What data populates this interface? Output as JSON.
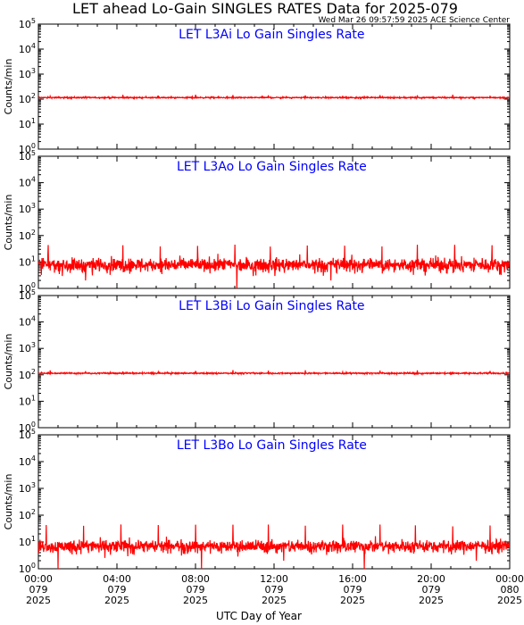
{
  "figure": {
    "title": "LET ahead Lo-Gain SINGLES RATES Data for 2025-079",
    "timestamp": "Wed Mar 26 09:57:59 2025 ACE Science Center",
    "xlabel": "UTC Day of Year"
  },
  "colors": {
    "trace": "#ff0000",
    "panel_title": "#0000ff",
    "axes": "#000000",
    "background": "#ffffff"
  },
  "chart_data": [
    {
      "type": "line",
      "title": "LET L3Ai Lo Gain Singles Rate",
      "ylabel": "Counts/min",
      "yscale": "log",
      "ylim": [
        1,
        100000
      ],
      "y_ticks": [
        "10^0",
        "10^1",
        "10^2",
        "10^3",
        "10^4",
        "10^5"
      ],
      "xlim": [
        "2025-079 00:00",
        "2025-080 00:00"
      ],
      "x_ticks": [
        "00:00 079 2025",
        "04:00 079 2025",
        "08:00 079 2025",
        "12:00 079 2025",
        "16:00 079 2025",
        "20:00 079 2025",
        "00:00 080 2025"
      ],
      "series": [
        {
          "baseline": 115,
          "noise_low": 105,
          "noise_high": 125,
          "spike_peak": 150,
          "spike_times_hours": [
            0.6,
            2.4,
            4.3,
            6.1,
            8.0,
            9.9,
            11.7,
            13.6,
            15.5,
            17.4,
            19.3,
            21.1,
            23.0
          ]
        }
      ]
    },
    {
      "type": "line",
      "title": "LET L3Ao Lo Gain Singles Rate",
      "ylabel": "Counts/min",
      "yscale": "log",
      "ylim": [
        1,
        100000
      ],
      "y_ticks": [
        "10^0",
        "10^1",
        "10^2",
        "10^3",
        "10^4",
        "10^5"
      ],
      "xlim": [
        "2025-079 00:00",
        "2025-080 00:00"
      ],
      "x_ticks": [
        "00:00 079 2025",
        "04:00 079 2025",
        "08:00 079 2025",
        "12:00 079 2025",
        "16:00 079 2025",
        "20:00 079 2025",
        "00:00 080 2025"
      ],
      "series": [
        {
          "baseline": 8,
          "noise_low": 3,
          "noise_high": 18,
          "spike_peak": 45,
          "spike_times_hours": [
            0.5,
            2.4,
            4.3,
            6.2,
            8.1,
            10.0,
            11.8,
            13.7,
            15.6,
            17.5,
            19.3,
            21.2,
            23.1
          ],
          "dropouts": [
            {
              "hour": 2.4,
              "value": 2
            },
            {
              "hour": 10.1,
              "value": 1
            },
            {
              "hour": 14.9,
              "value": 2
            }
          ]
        }
      ]
    },
    {
      "type": "line",
      "title": "LET L3Bi Lo Gain Singles Rate",
      "ylabel": "Counts/min",
      "yscale": "log",
      "ylim": [
        1,
        100000
      ],
      "y_ticks": [
        "10^0",
        "10^1",
        "10^2",
        "10^3",
        "10^4",
        "10^5"
      ],
      "xlim": [
        "2025-079 00:00",
        "2025-080 00:00"
      ],
      "x_ticks": [
        "00:00 079 2025",
        "04:00 079 2025",
        "08:00 079 2025",
        "12:00 079 2025",
        "16:00 079 2025",
        "20:00 079 2025",
        "00:00 080 2025"
      ],
      "series": [
        {
          "baseline": 115,
          "noise_low": 105,
          "noise_high": 125,
          "spike_peak": 150,
          "spike_times_hours": [
            0.6,
            2.4,
            4.3,
            6.1,
            8.0,
            9.9,
            11.7,
            13.6,
            15.5,
            17.4,
            19.3,
            21.1,
            23.0
          ]
        }
      ]
    },
    {
      "type": "line",
      "title": "LET L3Bo Lo Gain Singles Rate",
      "ylabel": "Counts/min",
      "yscale": "log",
      "ylim": [
        1,
        100000
      ],
      "y_ticks": [
        "10^0",
        "10^1",
        "10^2",
        "10^3",
        "10^4",
        "10^5"
      ],
      "xlim": [
        "2025-079 00:00",
        "2025-080 00:00"
      ],
      "x_ticks": [
        "00:00 079 2025",
        "04:00 079 2025",
        "08:00 079 2025",
        "12:00 079 2025",
        "16:00 079 2025",
        "20:00 079 2025",
        "00:00 080 2025"
      ],
      "series": [
        {
          "baseline": 7,
          "noise_low": 3,
          "noise_high": 15,
          "spike_peak": 45,
          "spike_times_hours": [
            0.4,
            2.3,
            4.2,
            6.1,
            8.0,
            9.9,
            11.7,
            13.6,
            15.5,
            17.4,
            19.2,
            21.1,
            23.0
          ],
          "dropouts": [
            {
              "hour": 1.0,
              "value": 1
            },
            {
              "hour": 8.3,
              "value": 1
            },
            {
              "hour": 12.5,
              "value": 2
            },
            {
              "hour": 16.6,
              "value": 1
            },
            {
              "hour": 22.3,
              "value": 2
            }
          ]
        }
      ]
    }
  ]
}
